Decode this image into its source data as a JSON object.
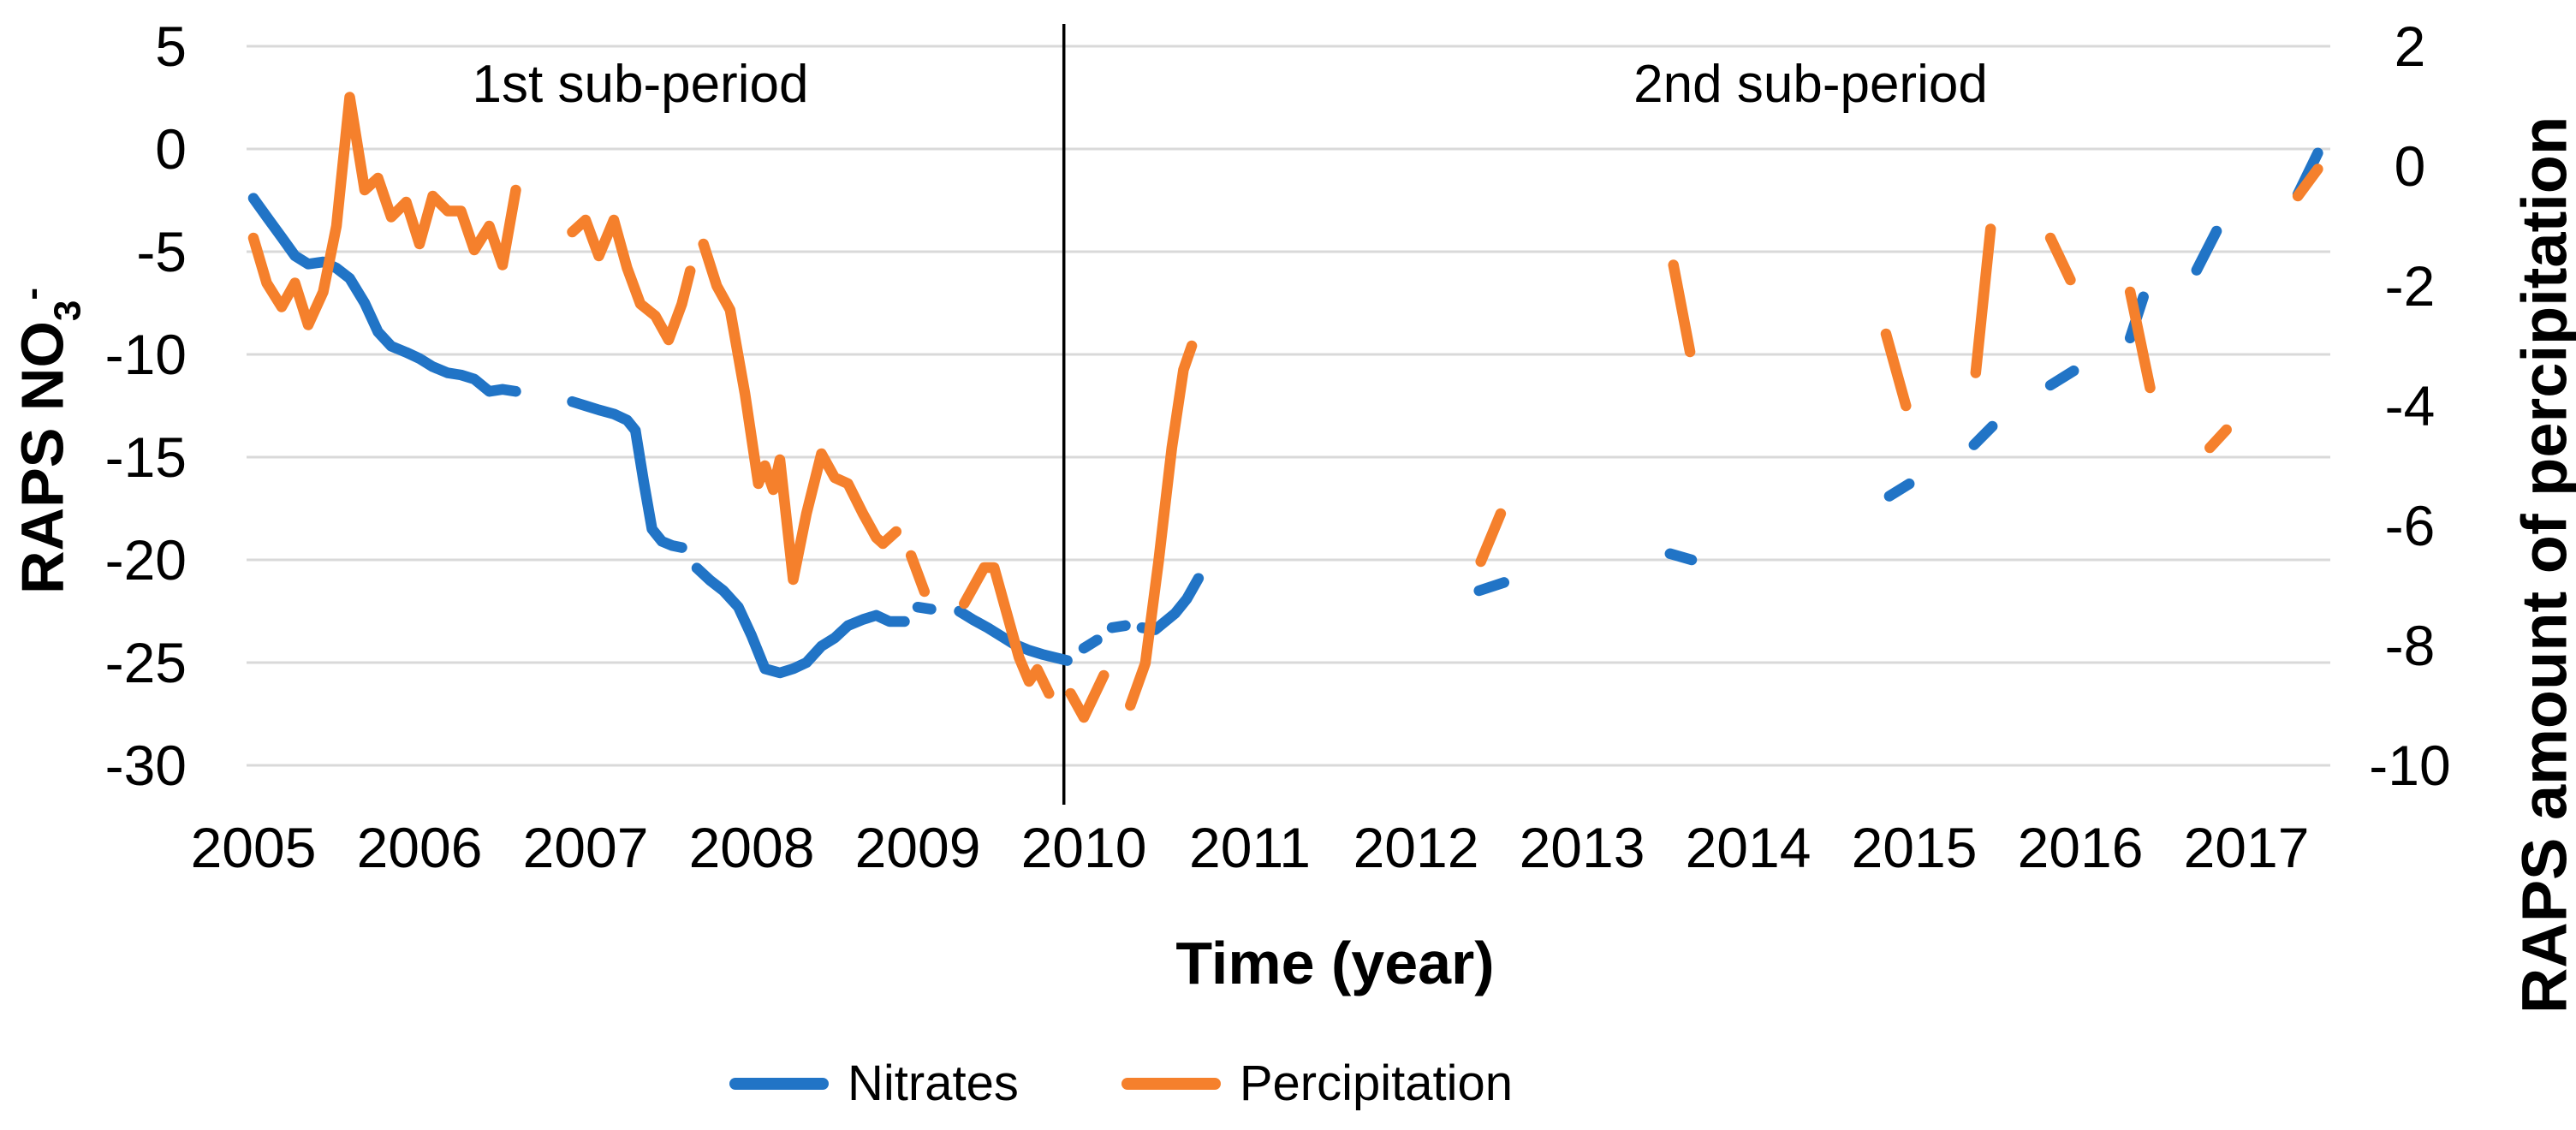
{
  "page": {
    "background": "#ffffff"
  },
  "chart_data": {
    "type": "line",
    "title": "",
    "grid": true,
    "legend_position": "bottom",
    "x_axis": {
      "label": "Time (year)",
      "ticks": [
        2005,
        2006,
        2007,
        2008,
        2009,
        2010,
        2011,
        2012,
        2013,
        2014,
        2015,
        2016,
        2017
      ]
    },
    "left_axis": {
      "label": "RAPS NO3-",
      "label_main": "RAPS NO",
      "label_sub": "3",
      "label_sup": "-",
      "ticks": [
        5,
        0,
        -5,
        -10,
        -15,
        -20,
        -25,
        -30
      ],
      "range": [
        -30,
        5
      ]
    },
    "right_axis": {
      "label": "RAPS amount of percipitation",
      "ticks": [
        2,
        0,
        -2,
        -4,
        -6,
        -8,
        -10
      ],
      "range": [
        -10,
        2
      ]
    },
    "divider_year": 2009.88,
    "annotations": [
      {
        "text": "1st sub-period"
      },
      {
        "text": "2nd sub-period"
      }
    ],
    "colors": {
      "gridline": "#D9D9D9",
      "divider": "#000000",
      "text": "#000000"
    },
    "series": [
      {
        "name": "Nitrates",
        "axis": "left",
        "color": "#2174C6",
        "points": [
          [
            2005.0,
            -2.4
          ],
          [
            2005.08,
            -3.3
          ],
          [
            2005.17,
            -4.3
          ],
          [
            2005.25,
            -5.2
          ],
          [
            2005.33,
            -5.6
          ],
          [
            2005.42,
            -5.5
          ],
          [
            2005.5,
            -5.8
          ],
          [
            2005.58,
            -6.3
          ],
          [
            2005.67,
            -7.5
          ],
          [
            2005.75,
            -8.9
          ],
          [
            2005.83,
            -9.6
          ],
          [
            2005.92,
            -9.9
          ],
          [
            2006.0,
            -10.2
          ],
          [
            2006.08,
            -10.6
          ],
          [
            2006.17,
            -10.9
          ],
          [
            2006.25,
            -11.0
          ],
          [
            2006.33,
            -11.2
          ],
          [
            2006.42,
            -11.8
          ],
          [
            2006.5,
            -11.7
          ],
          [
            2006.58,
            -11.8
          ],
          null,
          [
            2006.92,
            -12.3
          ],
          [
            2007.0,
            -12.5
          ],
          [
            2007.08,
            -12.7
          ],
          [
            2007.17,
            -12.9
          ],
          [
            2007.25,
            -13.2
          ],
          [
            2007.3,
            -13.7
          ],
          [
            2007.35,
            -16.2
          ],
          [
            2007.4,
            -18.5
          ],
          [
            2007.46,
            -19.1
          ],
          [
            2007.52,
            -19.3
          ],
          [
            2007.58,
            -19.4
          ],
          null,
          [
            2007.67,
            -20.4
          ],
          [
            2007.75,
            -21.0
          ],
          [
            2007.83,
            -21.5
          ],
          [
            2007.92,
            -22.3
          ],
          [
            2008.0,
            -23.7
          ],
          [
            2008.08,
            -25.3
          ],
          [
            2008.17,
            -25.5
          ],
          [
            2008.25,
            -25.3
          ],
          [
            2008.33,
            -25.0
          ],
          [
            2008.42,
            -24.2
          ],
          [
            2008.5,
            -23.8
          ],
          [
            2008.58,
            -23.2
          ],
          [
            2008.67,
            -22.9
          ],
          [
            2008.75,
            -22.7
          ],
          [
            2008.83,
            -23.0
          ],
          [
            2008.92,
            -23.0
          ],
          null,
          [
            2009.0,
            -22.3
          ],
          [
            2009.08,
            -22.4
          ],
          null,
          [
            2009.25,
            -22.5
          ],
          [
            2009.33,
            -22.9
          ],
          [
            2009.42,
            -23.3
          ],
          [
            2009.5,
            -23.7
          ],
          [
            2009.58,
            -24.1
          ],
          [
            2009.67,
            -24.4
          ],
          [
            2009.75,
            -24.6
          ],
          [
            2009.9,
            -24.9
          ],
          null,
          [
            2010.0,
            -24.3
          ],
          [
            2010.08,
            -23.9
          ],
          null,
          [
            2010.17,
            -23.3
          ],
          [
            2010.25,
            -23.2
          ],
          null,
          [
            2010.35,
            -23.3
          ],
          [
            2010.43,
            -23.4
          ],
          [
            2010.55,
            -22.6
          ],
          [
            2010.62,
            -21.9
          ],
          [
            2010.69,
            -20.9
          ],
          null,
          [
            2012.38,
            -21.5
          ],
          [
            2012.53,
            -21.1
          ],
          null,
          [
            2013.53,
            -19.7
          ],
          [
            2013.66,
            -20.0
          ],
          null,
          [
            2014.85,
            -16.9
          ],
          [
            2014.97,
            -16.3
          ],
          null,
          [
            2015.36,
            -14.4
          ],
          [
            2015.47,
            -13.5
          ],
          null,
          [
            2015.82,
            -11.5
          ],
          [
            2015.96,
            -10.8
          ],
          null,
          [
            2016.3,
            -9.2
          ],
          [
            2016.38,
            -7.2
          ],
          null,
          [
            2016.7,
            -5.9
          ],
          [
            2016.82,
            -4.0
          ],
          null,
          [
            2017.31,
            -2.2
          ],
          [
            2017.43,
            -0.2
          ]
        ]
      },
      {
        "name": "Percipitation",
        "axis": "right",
        "color": "#F5802C",
        "points": [
          [
            2005.0,
            -1.2
          ],
          [
            2005.08,
            -1.95
          ],
          [
            2005.17,
            -2.35
          ],
          [
            2005.25,
            -1.95
          ],
          [
            2005.33,
            -2.65
          ],
          [
            2005.42,
            -2.1
          ],
          [
            2005.5,
            -1.0
          ],
          [
            2005.58,
            1.15
          ],
          [
            2005.67,
            -0.4
          ],
          [
            2005.75,
            -0.2
          ],
          [
            2005.83,
            -0.85
          ],
          [
            2005.92,
            -0.6
          ],
          [
            2006.0,
            -1.3
          ],
          [
            2006.08,
            -0.5
          ],
          [
            2006.17,
            -0.75
          ],
          [
            2006.25,
            -0.75
          ],
          [
            2006.33,
            -1.4
          ],
          [
            2006.42,
            -1.0
          ],
          [
            2006.5,
            -1.65
          ],
          [
            2006.58,
            -0.4
          ],
          null,
          [
            2006.92,
            -1.1
          ],
          [
            2007.0,
            -0.9
          ],
          [
            2007.08,
            -1.5
          ],
          [
            2007.17,
            -0.9
          ],
          [
            2007.25,
            -1.7
          ],
          [
            2007.33,
            -2.3
          ],
          [
            2007.42,
            -2.5
          ],
          [
            2007.5,
            -2.9
          ],
          [
            2007.58,
            -2.3
          ],
          [
            2007.63,
            -1.75
          ],
          null,
          [
            2007.71,
            -1.3
          ],
          [
            2007.79,
            -2.0
          ],
          [
            2007.87,
            -2.4
          ],
          [
            2007.96,
            -3.8
          ],
          [
            2008.04,
            -5.3
          ],
          [
            2008.08,
            -5.0
          ],
          [
            2008.13,
            -5.4
          ],
          [
            2008.17,
            -4.9
          ],
          [
            2008.25,
            -6.9
          ],
          [
            2008.33,
            -5.8
          ],
          [
            2008.42,
            -4.8
          ],
          [
            2008.5,
            -5.2
          ],
          [
            2008.58,
            -5.3
          ],
          [
            2008.67,
            -5.8
          ],
          [
            2008.75,
            -6.2
          ],
          [
            2008.79,
            -6.3
          ],
          [
            2008.87,
            -6.1
          ],
          null,
          [
            2008.96,
            -6.5
          ],
          [
            2009.04,
            -7.1
          ],
          null,
          [
            2009.28,
            -7.3
          ],
          [
            2009.4,
            -6.7
          ],
          [
            2009.46,
            -6.7
          ],
          [
            2009.56,
            -7.7
          ],
          [
            2009.61,
            -8.2
          ],
          [
            2009.67,
            -8.6
          ],
          [
            2009.72,
            -8.4
          ],
          [
            2009.79,
            -8.8
          ],
          null,
          [
            2009.92,
            -8.8
          ],
          [
            2010.0,
            -9.2
          ],
          [
            2010.12,
            -8.5
          ],
          null,
          [
            2010.28,
            -9.0
          ],
          [
            2010.37,
            -8.3
          ],
          [
            2010.45,
            -6.6
          ],
          [
            2010.53,
            -4.7
          ],
          [
            2010.6,
            -3.4
          ],
          [
            2010.65,
            -3.0
          ],
          null,
          [
            2012.39,
            -6.6
          ],
          [
            2012.51,
            -5.8
          ],
          null,
          [
            2013.55,
            -1.65
          ],
          [
            2013.65,
            -3.1
          ],
          null,
          [
            2014.83,
            -2.8
          ],
          [
            2014.95,
            -4.0
          ],
          null,
          [
            2015.37,
            -3.45
          ],
          [
            2015.46,
            -1.05
          ],
          null,
          [
            2015.82,
            -1.2
          ],
          [
            2015.94,
            -1.9
          ],
          null,
          [
            2016.3,
            -2.1
          ],
          [
            2016.42,
            -3.7
          ],
          null,
          [
            2016.78,
            -4.7
          ],
          [
            2016.88,
            -4.4
          ],
          null,
          [
            2017.31,
            -0.5
          ],
          [
            2017.43,
            -0.05
          ]
        ]
      }
    ]
  }
}
